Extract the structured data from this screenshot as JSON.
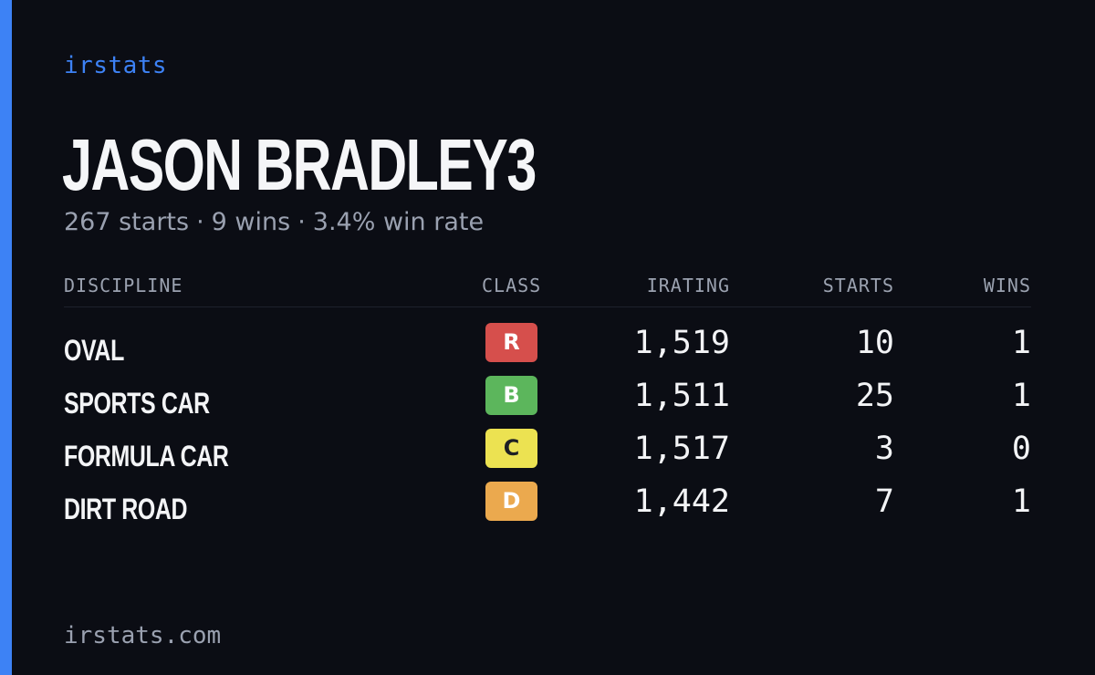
{
  "colors": {
    "background": "#0b0d14",
    "accent": "#3d82f5"
  },
  "brand": "irstats",
  "player": {
    "name": "JASON BRADLEY3",
    "starts_text": "267 starts",
    "wins_text": "9 wins",
    "win_rate_text": "3.4% win rate",
    "separator": "·"
  },
  "table": {
    "headers": {
      "discipline": "DISCIPLINE",
      "class": "CLASS",
      "irating": "IRATING",
      "starts": "STARTS",
      "wins": "WINS"
    },
    "rows": [
      {
        "discipline": "OVAL",
        "class": "R",
        "class_bg": "#d64f4c",
        "class_fg": "#ffffff",
        "irating": "1,519",
        "starts": "10",
        "wins": "1"
      },
      {
        "discipline": "SPORTS CAR",
        "class": "B",
        "class_bg": "#5cb65c",
        "class_fg": "#ffffff",
        "irating": "1,511",
        "starts": "25",
        "wins": "1"
      },
      {
        "discipline": "FORMULA CAR",
        "class": "C",
        "class_bg": "#ece251",
        "class_fg": "#1d1f24",
        "irating": "1,517",
        "starts": "3",
        "wins": "0"
      },
      {
        "discipline": "DIRT ROAD",
        "class": "D",
        "class_bg": "#eba94e",
        "class_fg": "#ffffff",
        "irating": "1,442",
        "starts": "7",
        "wins": "1"
      }
    ]
  },
  "footer": {
    "url": "irstats.com"
  }
}
